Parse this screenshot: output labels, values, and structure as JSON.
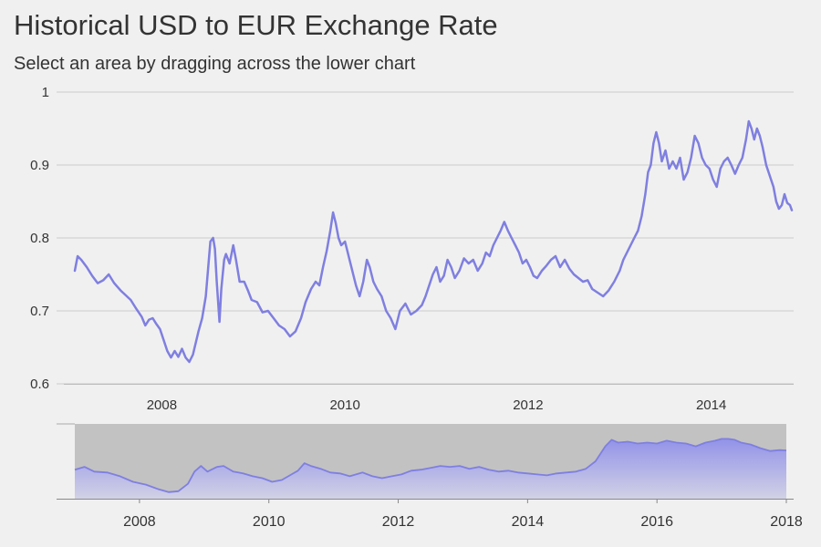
{
  "chart_data": [
    {
      "type": "line",
      "title": "Historical USD to EUR Exchange Rate",
      "subtitle": "Select an area by dragging across the lower chart",
      "xlabel": "",
      "ylabel": "",
      "xlim": [
        2006.93,
        2014.9
      ],
      "ylim": [
        0.6,
        1.0
      ],
      "xticks": [
        "2008",
        "2010",
        "2012",
        "2014"
      ],
      "yticks": [
        "1",
        "0.9",
        "0.8",
        "0.7",
        "0.6"
      ],
      "grid": true,
      "legend": "none",
      "series": [
        {
          "color": "#7f7fe0",
          "points": [
            [
              2007.05,
              0.755
            ],
            [
              2007.08,
              0.775
            ],
            [
              2007.12,
              0.77
            ],
            [
              2007.18,
              0.76
            ],
            [
              2007.24,
              0.748
            ],
            [
              2007.3,
              0.738
            ],
            [
              2007.36,
              0.742
            ],
            [
              2007.42,
              0.75
            ],
            [
              2007.48,
              0.738
            ],
            [
              2007.55,
              0.728
            ],
            [
              2007.6,
              0.722
            ],
            [
              2007.66,
              0.715
            ],
            [
              2007.72,
              0.703
            ],
            [
              2007.78,
              0.692
            ],
            [
              2007.82,
              0.68
            ],
            [
              2007.86,
              0.688
            ],
            [
              2007.9,
              0.69
            ],
            [
              2007.94,
              0.682
            ],
            [
              2007.98,
              0.675
            ],
            [
              2008.02,
              0.66
            ],
            [
              2008.06,
              0.645
            ],
            [
              2008.1,
              0.636
            ],
            [
              2008.14,
              0.645
            ],
            [
              2008.18,
              0.637
            ],
            [
              2008.22,
              0.648
            ],
            [
              2008.26,
              0.636
            ],
            [
              2008.3,
              0.63
            ],
            [
              2008.34,
              0.64
            ],
            [
              2008.4,
              0.672
            ],
            [
              2008.44,
              0.69
            ],
            [
              2008.48,
              0.72
            ],
            [
              2008.5,
              0.75
            ],
            [
              2008.53,
              0.795
            ],
            [
              2008.56,
              0.8
            ],
            [
              2008.58,
              0.785
            ],
            [
              2008.6,
              0.74
            ],
            [
              2008.63,
              0.685
            ],
            [
              2008.65,
              0.73
            ],
            [
              2008.68,
              0.77
            ],
            [
              2008.7,
              0.778
            ],
            [
              2008.74,
              0.765
            ],
            [
              2008.78,
              0.79
            ],
            [
              2008.81,
              0.77
            ],
            [
              2008.85,
              0.74
            ],
            [
              2008.9,
              0.74
            ],
            [
              2008.94,
              0.728
            ],
            [
              2008.98,
              0.715
            ],
            [
              2009.04,
              0.712
            ],
            [
              2009.1,
              0.698
            ],
            [
              2009.16,
              0.7
            ],
            [
              2009.22,
              0.69
            ],
            [
              2009.28,
              0.68
            ],
            [
              2009.34,
              0.675
            ],
            [
              2009.4,
              0.665
            ],
            [
              2009.46,
              0.672
            ],
            [
              2009.52,
              0.69
            ],
            [
              2009.57,
              0.712
            ],
            [
              2009.63,
              0.73
            ],
            [
              2009.68,
              0.74
            ],
            [
              2009.72,
              0.735
            ],
            [
              2009.76,
              0.76
            ],
            [
              2009.8,
              0.782
            ],
            [
              2009.84,
              0.81
            ],
            [
              2009.87,
              0.835
            ],
            [
              2009.9,
              0.82
            ],
            [
              2009.93,
              0.8
            ],
            [
              2009.96,
              0.79
            ],
            [
              2010.0,
              0.795
            ],
            [
              2010.04,
              0.775
            ],
            [
              2010.08,
              0.755
            ],
            [
              2010.12,
              0.735
            ],
            [
              2010.16,
              0.72
            ],
            [
              2010.2,
              0.74
            ],
            [
              2010.24,
              0.77
            ],
            [
              2010.27,
              0.76
            ],
            [
              2010.31,
              0.74
            ],
            [
              2010.35,
              0.73
            ],
            [
              2010.4,
              0.72
            ],
            [
              2010.45,
              0.7
            ],
            [
              2010.5,
              0.69
            ],
            [
              2010.55,
              0.675
            ],
            [
              2010.6,
              0.7
            ],
            [
              2010.66,
              0.71
            ],
            [
              2010.72,
              0.695
            ],
            [
              2010.78,
              0.7
            ],
            [
              2010.84,
              0.708
            ],
            [
              2010.88,
              0.72
            ],
            [
              2010.92,
              0.735
            ],
            [
              2010.96,
              0.75
            ],
            [
              2011.0,
              0.76
            ],
            [
              2011.04,
              0.74
            ],
            [
              2011.08,
              0.748
            ],
            [
              2011.12,
              0.77
            ],
            [
              2011.16,
              0.76
            ],
            [
              2011.2,
              0.745
            ],
            [
              2011.25,
              0.755
            ],
            [
              2011.3,
              0.772
            ],
            [
              2011.35,
              0.765
            ],
            [
              2011.4,
              0.77
            ],
            [
              2011.45,
              0.755
            ],
            [
              2011.5,
              0.765
            ],
            [
              2011.54,
              0.78
            ],
            [
              2011.58,
              0.775
            ],
            [
              2011.62,
              0.79
            ],
            [
              2011.66,
              0.8
            ],
            [
              2011.7,
              0.81
            ],
            [
              2011.74,
              0.822
            ],
            [
              2011.78,
              0.81
            ],
            [
              2011.82,
              0.8
            ],
            [
              2011.86,
              0.79
            ],
            [
              2011.9,
              0.78
            ],
            [
              2011.94,
              0.765
            ],
            [
              2011.98,
              0.77
            ],
            [
              2012.02,
              0.76
            ],
            [
              2012.06,
              0.748
            ],
            [
              2012.1,
              0.745
            ],
            [
              2012.15,
              0.755
            ],
            [
              2012.2,
              0.762
            ],
            [
              2012.25,
              0.77
            ],
            [
              2012.3,
              0.775
            ],
            [
              2012.35,
              0.76
            ],
            [
              2012.4,
              0.77
            ],
            [
              2012.45,
              0.758
            ],
            [
              2012.5,
              0.75
            ],
            [
              2012.55,
              0.745
            ],
            [
              2012.6,
              0.74
            ],
            [
              2012.65,
              0.742
            ],
            [
              2012.7,
              0.73
            ],
            [
              2012.76,
              0.725
            ],
            [
              2012.82,
              0.72
            ],
            [
              2012.88,
              0.728
            ],
            [
              2012.94,
              0.74
            ],
            [
              2013.0,
              0.755
            ],
            [
              2013.04,
              0.77
            ],
            [
              2013.08,
              0.78
            ],
            [
              2013.12,
              0.79
            ],
            [
              2013.16,
              0.8
            ],
            [
              2013.2,
              0.81
            ],
            [
              2013.24,
              0.83
            ],
            [
              2013.28,
              0.86
            ],
            [
              2013.31,
              0.89
            ],
            [
              2013.34,
              0.9
            ],
            [
              2013.37,
              0.93
            ],
            [
              2013.4,
              0.945
            ],
            [
              2013.43,
              0.93
            ],
            [
              2013.46,
              0.905
            ],
            [
              2013.5,
              0.92
            ],
            [
              2013.54,
              0.895
            ],
            [
              2013.58,
              0.905
            ],
            [
              2013.62,
              0.895
            ],
            [
              2013.66,
              0.91
            ],
            [
              2013.7,
              0.88
            ],
            [
              2013.74,
              0.89
            ],
            [
              2013.78,
              0.91
            ],
            [
              2013.82,
              0.94
            ],
            [
              2013.86,
              0.93
            ],
            [
              2013.9,
              0.91
            ],
            [
              2013.94,
              0.9
            ],
            [
              2013.98,
              0.895
            ],
            [
              2014.02,
              0.88
            ],
            [
              2014.06,
              0.87
            ],
            [
              2014.1,
              0.895
            ],
            [
              2014.14,
              0.905
            ],
            [
              2014.18,
              0.91
            ],
            [
              2014.22,
              0.9
            ],
            [
              2014.26,
              0.888
            ],
            [
              2014.3,
              0.9
            ],
            [
              2014.34,
              0.91
            ],
            [
              2014.38,
              0.935
            ],
            [
              2014.41,
              0.96
            ],
            [
              2014.44,
              0.95
            ],
            [
              2014.47,
              0.935
            ],
            [
              2014.5,
              0.95
            ],
            [
              2014.53,
              0.94
            ],
            [
              2014.56,
              0.925
            ],
            [
              2014.6,
              0.9
            ],
            [
              2014.64,
              0.885
            ],
            [
              2014.68,
              0.87
            ],
            [
              2014.71,
              0.85
            ],
            [
              2014.74,
              0.84
            ],
            [
              2014.77,
              0.845
            ],
            [
              2014.8,
              0.86
            ],
            [
              2014.83,
              0.848
            ],
            [
              2014.86,
              0.845
            ],
            [
              2014.88,
              0.838
            ]
          ]
        }
      ]
    },
    {
      "type": "area",
      "title": "",
      "xlabel": "",
      "ylabel": "",
      "xlim": [
        2007.0,
        2018.0
      ],
      "ylim": [
        0.6,
        1.0
      ],
      "xticks": [
        "2008",
        "2010",
        "2012",
        "2014",
        "2016",
        "2018"
      ],
      "grid": false,
      "legend": "none",
      "selection": [
        2007.0,
        2018.0
      ],
      "series": [
        {
          "color": "#7f7fe0",
          "points": [
            [
              2007.0,
              0.755
            ],
            [
              2007.15,
              0.77
            ],
            [
              2007.3,
              0.745
            ],
            [
              2007.5,
              0.74
            ],
            [
              2007.7,
              0.72
            ],
            [
              2007.9,
              0.69
            ],
            [
              2008.1,
              0.675
            ],
            [
              2008.3,
              0.65
            ],
            [
              2008.45,
              0.635
            ],
            [
              2008.6,
              0.64
            ],
            [
              2008.75,
              0.68
            ],
            [
              2008.85,
              0.745
            ],
            [
              2008.95,
              0.775
            ],
            [
              2009.05,
              0.745
            ],
            [
              2009.2,
              0.77
            ],
            [
              2009.3,
              0.775
            ],
            [
              2009.45,
              0.745
            ],
            [
              2009.6,
              0.735
            ],
            [
              2009.75,
              0.72
            ],
            [
              2009.9,
              0.71
            ],
            [
              2010.05,
              0.69
            ],
            [
              2010.2,
              0.7
            ],
            [
              2010.35,
              0.73
            ],
            [
              2010.45,
              0.75
            ],
            [
              2010.55,
              0.79
            ],
            [
              2010.65,
              0.775
            ],
            [
              2010.8,
              0.76
            ],
            [
              2010.95,
              0.74
            ],
            [
              2011.1,
              0.735
            ],
            [
              2011.25,
              0.72
            ],
            [
              2011.45,
              0.74
            ],
            [
              2011.6,
              0.72
            ],
            [
              2011.75,
              0.71
            ],
            [
              2011.9,
              0.72
            ],
            [
              2012.05,
              0.73
            ],
            [
              2012.2,
              0.75
            ],
            [
              2012.35,
              0.755
            ],
            [
              2012.5,
              0.765
            ],
            [
              2012.65,
              0.775
            ],
            [
              2012.8,
              0.77
            ],
            [
              2012.95,
              0.775
            ],
            [
              2013.1,
              0.76
            ],
            [
              2013.25,
              0.77
            ],
            [
              2013.4,
              0.755
            ],
            [
              2013.55,
              0.745
            ],
            [
              2013.7,
              0.75
            ],
            [
              2013.85,
              0.74
            ],
            [
              2014.0,
              0.735
            ],
            [
              2014.15,
              0.73
            ],
            [
              2014.3,
              0.725
            ],
            [
              2014.45,
              0.735
            ],
            [
              2014.6,
              0.74
            ],
            [
              2014.75,
              0.745
            ],
            [
              2014.9,
              0.76
            ],
            [
              2015.05,
              0.8
            ],
            [
              2015.2,
              0.88
            ],
            [
              2015.3,
              0.915
            ],
            [
              2015.4,
              0.9
            ],
            [
              2015.55,
              0.905
            ],
            [
              2015.7,
              0.895
            ],
            [
              2015.85,
              0.9
            ],
            [
              2016.0,
              0.895
            ],
            [
              2016.15,
              0.91
            ],
            [
              2016.3,
              0.9
            ],
            [
              2016.45,
              0.895
            ],
            [
              2016.6,
              0.88
            ],
            [
              2016.75,
              0.9
            ],
            [
              2016.9,
              0.91
            ],
            [
              2017.0,
              0.92
            ],
            [
              2017.1,
              0.92
            ],
            [
              2017.2,
              0.915
            ],
            [
              2017.3,
              0.9
            ],
            [
              2017.45,
              0.89
            ],
            [
              2017.6,
              0.87
            ],
            [
              2017.75,
              0.855
            ],
            [
              2017.9,
              0.86
            ],
            [
              2018.0,
              0.858
            ]
          ]
        }
      ]
    }
  ]
}
